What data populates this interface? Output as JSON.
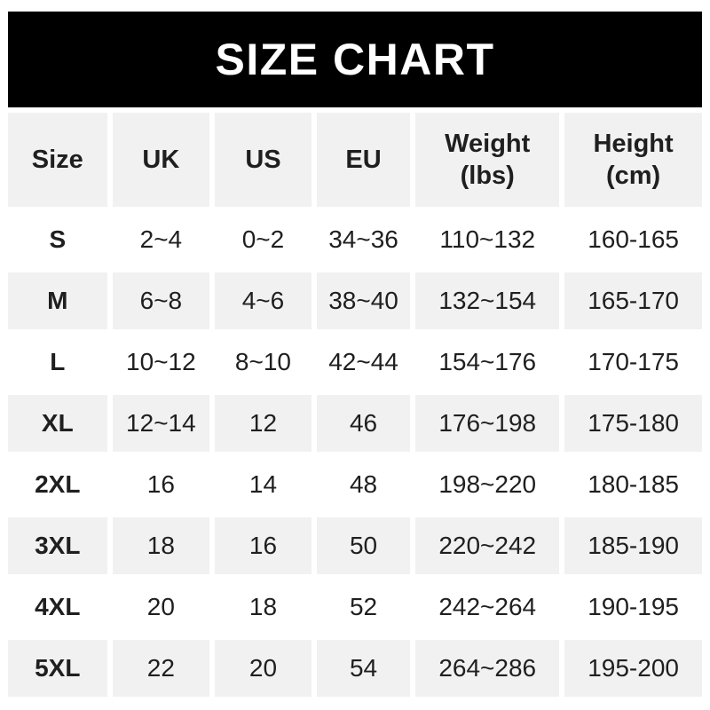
{
  "banner": {
    "title": "SIZE CHART"
  },
  "colors": {
    "banner_bg": "#000000",
    "banner_text": "#ffffff",
    "row_bg": "#ffffff",
    "row_alt_bg": "#f1f1f1",
    "text": "#1f1f1f"
  },
  "table": {
    "headers": [
      "Size",
      "UK",
      "US",
      "EU",
      "Weight\n(lbs)",
      "Height\n(cm)"
    ],
    "rows": [
      [
        "S",
        "2~4",
        "0~2",
        "34~36",
        "110~132",
        "160-165"
      ],
      [
        "M",
        "6~8",
        "4~6",
        "38~40",
        "132~154",
        "165-170"
      ],
      [
        "L",
        "10~12",
        "8~10",
        "42~44",
        "154~176",
        "170-175"
      ],
      [
        "XL",
        "12~14",
        "12",
        "46",
        "176~198",
        "175-180"
      ],
      [
        "2XL",
        "16",
        "14",
        "48",
        "198~220",
        "180-185"
      ],
      [
        "3XL",
        "18",
        "16",
        "50",
        "220~242",
        "185-190"
      ],
      [
        "4XL",
        "20",
        "18",
        "52",
        "242~264",
        "190-195"
      ],
      [
        "5XL",
        "22",
        "20",
        "54",
        "264~286",
        "195-200"
      ]
    ]
  },
  "chart_data": {
    "type": "table",
    "title": "SIZE CHART",
    "columns": [
      "Size",
      "UK",
      "US",
      "EU",
      "Weight (lbs)",
      "Height (cm)"
    ],
    "rows": [
      [
        "S",
        "2~4",
        "0~2",
        "34~36",
        "110~132",
        "160-165"
      ],
      [
        "M",
        "6~8",
        "4~6",
        "38~40",
        "132~154",
        "165-170"
      ],
      [
        "L",
        "10~12",
        "8~10",
        "42~44",
        "154~176",
        "170-175"
      ],
      [
        "XL",
        "12~14",
        "12",
        "46",
        "176~198",
        "175-180"
      ],
      [
        "2XL",
        "16",
        "14",
        "48",
        "198~220",
        "180-185"
      ],
      [
        "3XL",
        "18",
        "16",
        "50",
        "220~242",
        "185-190"
      ],
      [
        "4XL",
        "20",
        "18",
        "52",
        "242~264",
        "190-195"
      ],
      [
        "5XL",
        "22",
        "20",
        "54",
        "264~286",
        "195-200"
      ]
    ],
    "layout": {
      "header_row_background": "#f1f1f1",
      "alternating_row_backgrounds": [
        "#ffffff",
        "#f1f1f1"
      ],
      "first_row_after_header": "#ffffff"
    }
  }
}
